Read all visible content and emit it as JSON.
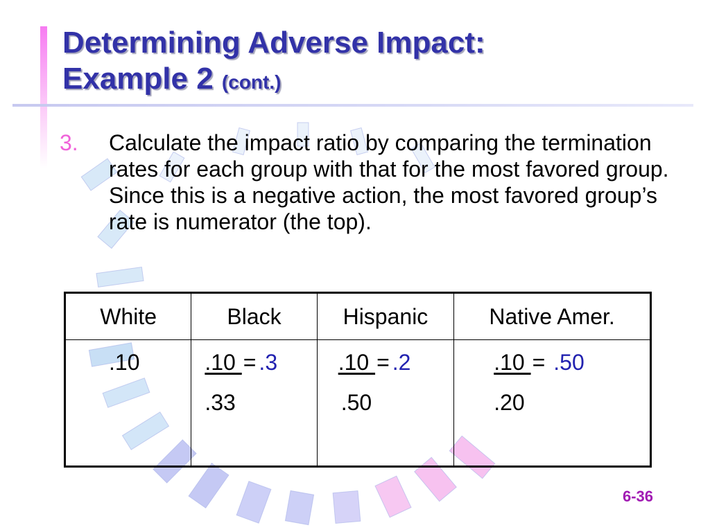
{
  "slide": {
    "title_line1": "Determining Adverse Impact:",
    "title_line2": "Example 2",
    "title_suffix": "(cont.)",
    "step_number": "3.",
    "step_text": "Calculate the impact ratio by comparing the termination rates for each group with that for the most favored group.  Since this is a negative action, the most favored group’s rate is numerator (the top).",
    "page_number": "6-36"
  },
  "table": {
    "headers": [
      "White",
      "Black",
      "Hispanic",
      "Native Amer."
    ],
    "white_value": ".10",
    "black": {
      "numerator": ".10 ",
      "equals": "=",
      "ratio": ".3",
      "denominator": ".33"
    },
    "hispanic": {
      "numerator": ".10 ",
      "equals": "=",
      "ratio": ".2",
      "denominator": ".50"
    },
    "native": {
      "numerator": ".10 ",
      "equals": "=",
      "ratio": ".50",
      "denominator": ".20"
    }
  },
  "colors": {
    "title": "#3232a8",
    "step_number": "#f062d9",
    "ratio": "#2222b0",
    "page_number": "#a11bb3"
  }
}
